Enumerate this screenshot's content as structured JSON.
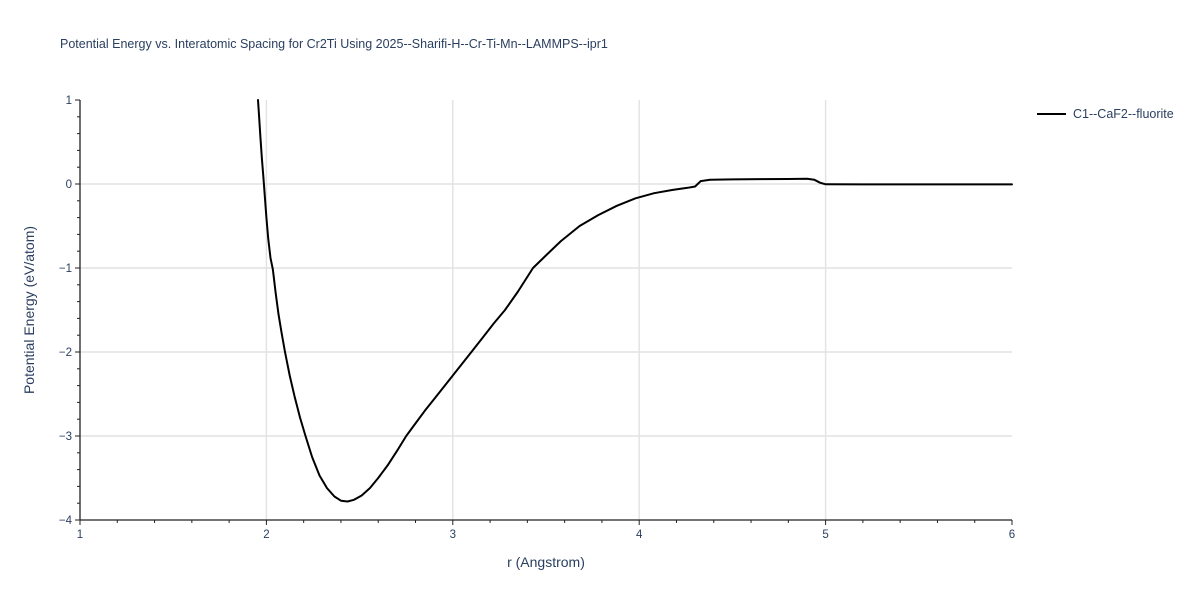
{
  "title": "Potential Energy vs. Interatomic Spacing for Cr2Ti Using 2025--Sharifi-H--Cr-Ti-Mn--LAMMPS--ipr1",
  "legend": {
    "items": [
      {
        "label": "C1--CaF2--fluorite",
        "line_color": "#000000"
      }
    ]
  },
  "colors": {
    "text": "#2a3f5f",
    "axis_line": "#222222",
    "tick": "#222222",
    "grid": "#e2e2e2",
    "curve": "#000000",
    "background": "#ffffff"
  },
  "chart_data": {
    "type": "line",
    "title": "Potential Energy vs. Interatomic Spacing for Cr2Ti Using 2025--Sharifi-H--Cr-Ti-Mn--LAMMPS--ipr1",
    "xlabel": "r (Angstrom)",
    "ylabel": "Potential Energy (eV/atom)",
    "xlim": [
      1,
      6
    ],
    "ylim": [
      -4,
      1
    ],
    "x_major_ticks": [
      1,
      2,
      3,
      4,
      5,
      6
    ],
    "x_tick_labels": [
      "1",
      "2",
      "3",
      "4",
      "5",
      "6"
    ],
    "y_major_ticks": [
      1,
      0,
      -1,
      -2,
      -3,
      -4
    ],
    "y_tick_labels": [
      "1",
      "0",
      "−1",
      "−2",
      "−3",
      "−4"
    ],
    "minor_tick_step": 0.2,
    "grid_x": [
      2,
      3,
      4,
      5
    ],
    "grid_y": [
      0,
      -1,
      -2,
      -3
    ],
    "grid": true,
    "legend_position": "outside-top-right",
    "series": [
      {
        "name": "C1--CaF2--fluorite",
        "color": "#000000",
        "points": [
          [
            1.955,
            1.0
          ],
          [
            1.96,
            0.84
          ],
          [
            1.968,
            0.56
          ],
          [
            1.976,
            0.3
          ],
          [
            1.984,
            0.08
          ],
          [
            1.992,
            -0.16
          ],
          [
            2.0,
            -0.4
          ],
          [
            2.01,
            -0.66
          ],
          [
            2.022,
            -0.88
          ],
          [
            2.035,
            -1.02
          ],
          [
            2.05,
            -1.3
          ],
          [
            2.065,
            -1.55
          ],
          [
            2.082,
            -1.78
          ],
          [
            2.1,
            -2.0
          ],
          [
            2.125,
            -2.28
          ],
          [
            2.15,
            -2.52
          ],
          [
            2.18,
            -2.78
          ],
          [
            2.21,
            -3.0
          ],
          [
            2.245,
            -3.25
          ],
          [
            2.285,
            -3.47
          ],
          [
            2.325,
            -3.62
          ],
          [
            2.365,
            -3.72
          ],
          [
            2.4,
            -3.77
          ],
          [
            2.435,
            -3.78
          ],
          [
            2.47,
            -3.76
          ],
          [
            2.51,
            -3.71
          ],
          [
            2.555,
            -3.62
          ],
          [
            2.6,
            -3.5
          ],
          [
            2.65,
            -3.35
          ],
          [
            2.7,
            -3.18
          ],
          [
            2.75,
            -3.0
          ],
          [
            2.8,
            -2.85
          ],
          [
            2.85,
            -2.7
          ],
          [
            2.9,
            -2.56
          ],
          [
            2.95,
            -2.42
          ],
          [
            3.0,
            -2.28
          ],
          [
            3.05,
            -2.14
          ],
          [
            3.1,
            -2.0
          ],
          [
            3.16,
            -1.83
          ],
          [
            3.22,
            -1.66
          ],
          [
            3.28,
            -1.5
          ],
          [
            3.35,
            -1.28
          ],
          [
            3.43,
            -1.0
          ],
          [
            3.5,
            -0.85
          ],
          [
            3.58,
            -0.68
          ],
          [
            3.68,
            -0.5
          ],
          [
            3.78,
            -0.37
          ],
          [
            3.88,
            -0.26
          ],
          [
            3.98,
            -0.17
          ],
          [
            4.08,
            -0.11
          ],
          [
            4.18,
            -0.07
          ],
          [
            4.26,
            -0.045
          ],
          [
            4.3,
            -0.03
          ],
          [
            4.33,
            0.035
          ],
          [
            4.38,
            0.05
          ],
          [
            4.5,
            0.055
          ],
          [
            4.65,
            0.058
          ],
          [
            4.8,
            0.06
          ],
          [
            4.9,
            0.062
          ],
          [
            4.94,
            0.05
          ],
          [
            4.97,
            0.015
          ],
          [
            5.0,
            -0.004
          ],
          [
            5.2,
            -0.005
          ],
          [
            5.6,
            -0.005
          ],
          [
            6.0,
            -0.005
          ]
        ]
      }
    ]
  }
}
